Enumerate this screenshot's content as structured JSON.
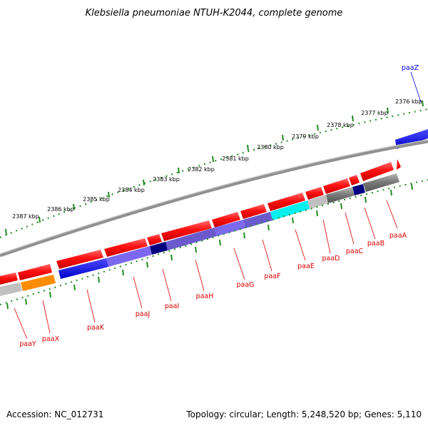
{
  "title": "Klebsiella pneumoniae NTUH-K2044, complete genome",
  "footer": {
    "accession": "Accession: NC_012731",
    "topology": "Topology: circular; Length: 5,248,520 bp; Genes: 5,110"
  },
  "ruler": [
    "2376 kbp",
    "2377 kbp",
    "2378 kbp",
    "2379 kbp",
    "2380 kbp",
    "2381 kbp",
    "2382 kbp",
    "2383 kbp",
    "2384 kbp",
    "2385 kbp",
    "2386 kbp",
    "2387 kbp"
  ],
  "gene_labels": {
    "paaZ": "paaZ",
    "paaA": "paaA",
    "paaB": "paaB",
    "paaC": "paaC",
    "paaD": "paaD",
    "paaE": "paaE",
    "paaF": "paaF",
    "paaG": "paaG",
    "paaH": "paaH",
    "paaI": "paaI",
    "paaJ": "paaJ",
    "paaK": "paaK",
    "paaX": "paaX",
    "paaY": "paaY"
  },
  "colors": {
    "gene_arrow": "#ff0000",
    "forward_gene": "#0000ee",
    "reverse_label": "#dd0000",
    "backbone": "#888888",
    "tick": "#228B22"
  }
}
